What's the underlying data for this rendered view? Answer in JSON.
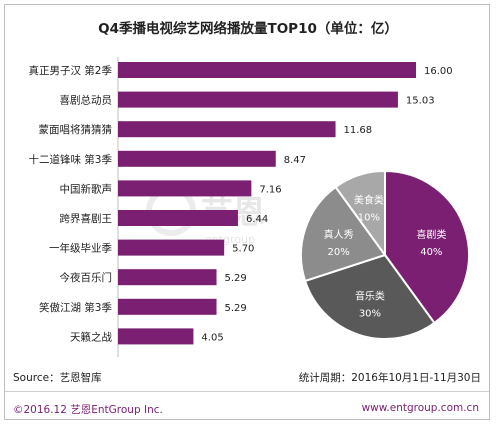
{
  "chart_data": [
    {
      "type": "bar",
      "orientation": "horizontal",
      "title": "Q4季播电视综艺网络播放量TOP10（单位：亿）",
      "categories": [
        "真正男子汉 第2季",
        "喜剧总动员",
        "蒙面唱将猜猜猜",
        "十二道锋味 第3季",
        "中国新歌声",
        "跨界喜剧王",
        "一年级毕业季",
        "今夜百乐门",
        "笑傲江湖 第3季",
        "天籁之战"
      ],
      "values": [
        16.0,
        15.03,
        11.68,
        8.47,
        7.16,
        6.44,
        5.7,
        5.29,
        5.29,
        4.05
      ],
      "value_labels": [
        "16.00",
        "15.03",
        "11.68",
        "8.47",
        "7.16",
        "6.44",
        "5.70",
        "5.29",
        "5.29",
        "4.05"
      ],
      "xlim": [
        0,
        16.5
      ],
      "color": "#7b1f72",
      "grid": false
    },
    {
      "type": "pie",
      "slices": [
        {
          "label": "喜剧类",
          "value": 40,
          "value_label": "40%",
          "color": "#7b1f72"
        },
        {
          "label": "音乐类",
          "value": 30,
          "value_label": "30%",
          "color": "#595959"
        },
        {
          "label": "真人秀",
          "value": 20,
          "value_label": "20%",
          "color": "#8c8c8c"
        },
        {
          "label": "美食类",
          "value": 10,
          "value_label": "10%",
          "color": "#a8a8a8"
        }
      ]
    }
  ],
  "source": "Source：艺恩智库",
  "period": "统计周期：2016年10月1日-11月30日",
  "watermark": {
    "brand": "艺恩",
    "sub": "entgroup"
  },
  "footer": {
    "copyright": "©2016.12  艺恩EntGroup Inc.",
    "website": "www.entgroup.com.cn"
  }
}
